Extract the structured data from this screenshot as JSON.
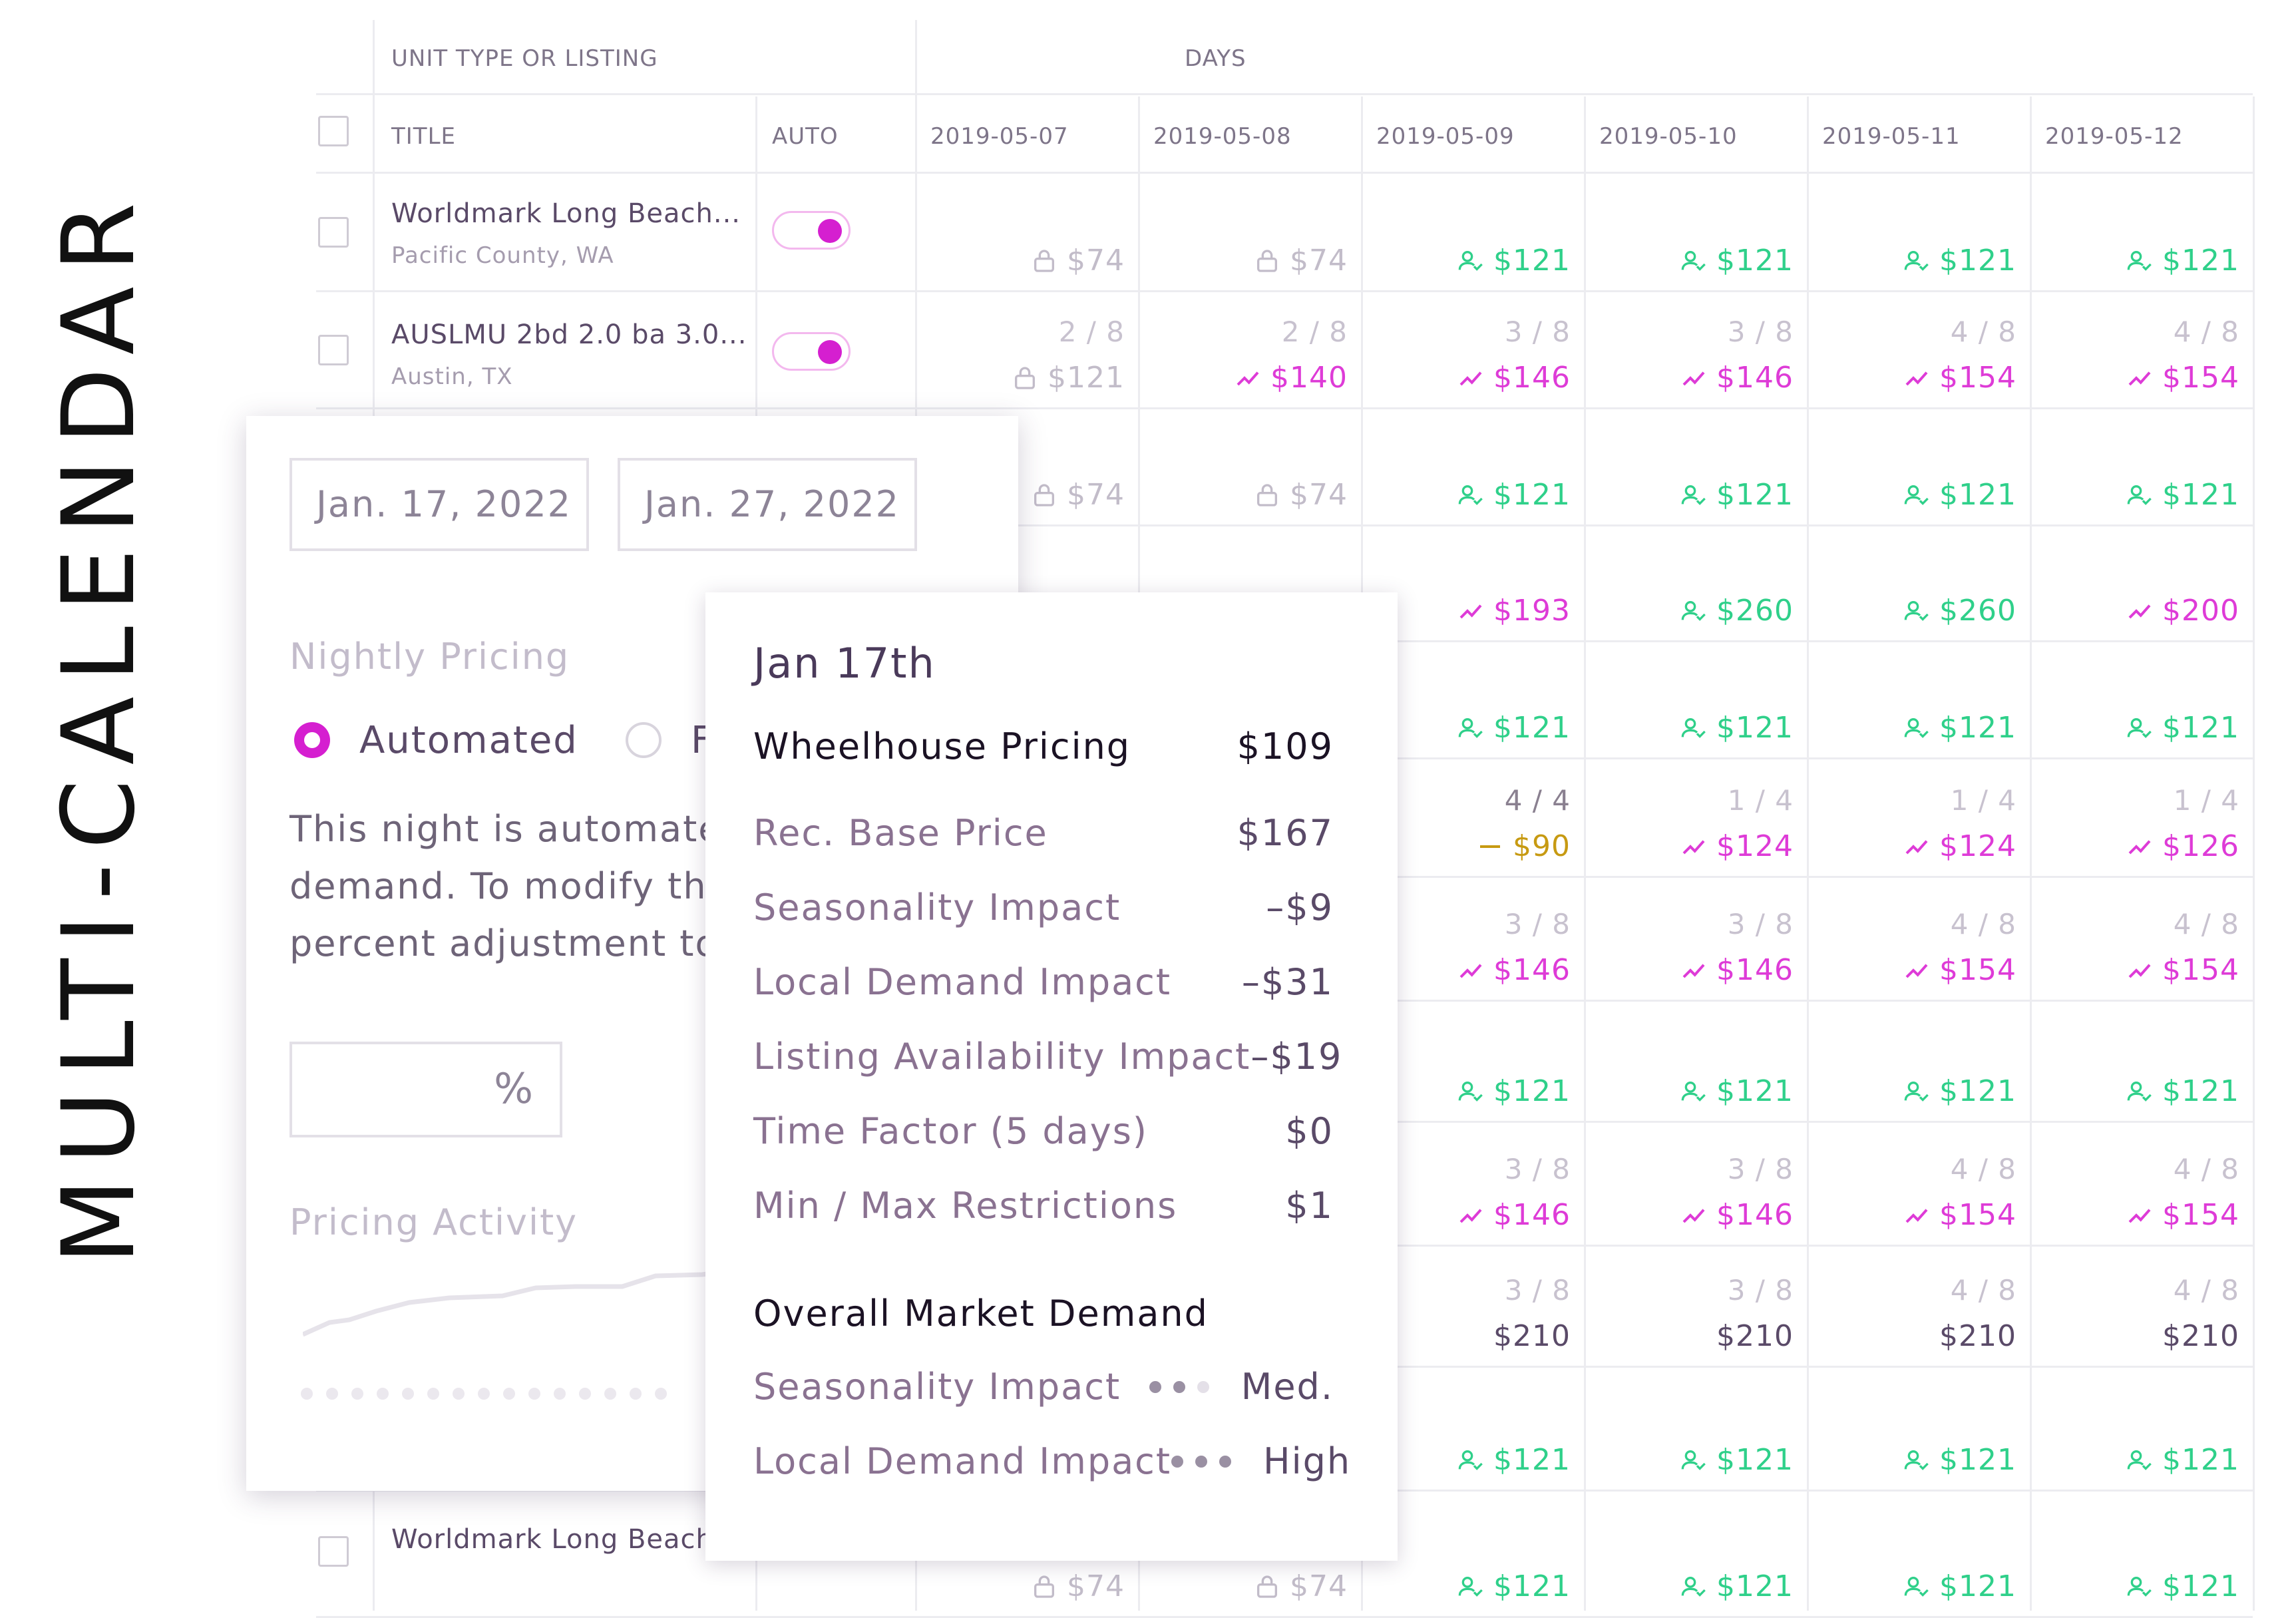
{
  "side_title": "MULTI-CALENDAR",
  "header": {
    "unit_type": "UNIT TYPE OR LISTING",
    "days": "DAYS",
    "title_col": "TITLE",
    "auto_col": "AUTO",
    "dates": [
      "2019-05-07",
      "2019-05-08",
      "2019-05-09",
      "2019-05-10",
      "2019-05-11",
      "2019-05-12"
    ]
  },
  "listings": [
    {
      "title": "Worldmark Long Beach...",
      "location": "Pacific County, WA",
      "auto": true
    },
    {
      "title": "AUSLMU 2bd 2.0 ba 3.0...",
      "location": "Austin, TX",
      "auto": true
    },
    {
      "title": "Worldmark Long Beach",
      "location": "",
      "auto": true
    }
  ],
  "rows": [
    [
      {
        "p": "$74",
        "k": "lock"
      },
      {
        "p": "$74",
        "k": "lock"
      },
      {
        "p": "$121",
        "k": "user"
      },
      {
        "p": "$121",
        "k": "user"
      },
      {
        "p": "$121",
        "k": "user"
      },
      {
        "p": "$121",
        "k": "user"
      }
    ],
    [
      {
        "o": "2 / 8",
        "p": "$121",
        "k": "lock"
      },
      {
        "o": "2 / 8",
        "p": "$140",
        "k": "trend"
      },
      {
        "o": "3 / 8",
        "p": "$146",
        "k": "trend"
      },
      {
        "o": "3 / 8",
        "p": "$146",
        "k": "trend"
      },
      {
        "o": "4 / 8",
        "p": "$154",
        "k": "trend"
      },
      {
        "o": "4 / 8",
        "p": "$154",
        "k": "trend"
      }
    ],
    [
      {
        "p": "$74",
        "k": "lock"
      },
      {
        "p": "$74",
        "k": "lock"
      },
      {
        "p": "$121",
        "k": "user"
      },
      {
        "p": "$121",
        "k": "user"
      },
      {
        "p": "$121",
        "k": "user"
      },
      {
        "p": "$121",
        "k": "user"
      }
    ],
    [
      null,
      null,
      {
        "p": "$193",
        "k": "trend"
      },
      {
        "p": "$260",
        "k": "user"
      },
      {
        "p": "$260",
        "k": "user"
      },
      {
        "p": "$200",
        "k": "trend"
      }
    ],
    [
      null,
      null,
      {
        "p": "$121",
        "k": "user"
      },
      {
        "p": "$121",
        "k": "user"
      },
      {
        "p": "$121",
        "k": "user"
      },
      {
        "p": "$121",
        "k": "user"
      }
    ],
    [
      null,
      null,
      {
        "o": "4 / 4",
        "od": true,
        "p": "$90",
        "k": "dash"
      },
      {
        "o": "1 / 4",
        "p": "$124",
        "k": "trend"
      },
      {
        "o": "1 / 4",
        "p": "$124",
        "k": "trend"
      },
      {
        "o": "1 / 4",
        "p": "$126",
        "k": "trend"
      }
    ],
    [
      null,
      null,
      {
        "o": "3 / 8",
        "p": "$146",
        "k": "trend"
      },
      {
        "o": "3 / 8",
        "p": "$146",
        "k": "trend"
      },
      {
        "o": "4 / 8",
        "p": "$154",
        "k": "trend"
      },
      {
        "o": "4 / 8",
        "p": "$154",
        "k": "trend"
      }
    ],
    [
      null,
      null,
      {
        "p": "$121",
        "k": "user"
      },
      {
        "p": "$121",
        "k": "user"
      },
      {
        "p": "$121",
        "k": "user"
      },
      {
        "p": "$121",
        "k": "user"
      }
    ],
    [
      null,
      null,
      {
        "o": "3 / 8",
        "p": "$146",
        "k": "trend"
      },
      {
        "o": "3 / 8",
        "p": "$146",
        "k": "trend"
      },
      {
        "o": "4 / 8",
        "p": "$154",
        "k": "trend"
      },
      {
        "o": "4 / 8",
        "p": "$154",
        "k": "trend"
      }
    ],
    [
      null,
      null,
      {
        "o": "3 / 8",
        "p": "$210",
        "k": "none"
      },
      {
        "o": "3 / 8",
        "p": "$210",
        "k": "none"
      },
      {
        "o": "4 / 8",
        "p": "$210",
        "k": "none"
      },
      {
        "o": "4 / 8",
        "p": "$210",
        "k": "none"
      }
    ],
    [
      null,
      null,
      {
        "p": "$121",
        "k": "user"
      },
      {
        "p": "$121",
        "k": "user"
      },
      {
        "p": "$121",
        "k": "user"
      },
      {
        "p": "$121",
        "k": "user"
      }
    ],
    [
      {
        "p": "$74",
        "k": "lock"
      },
      {
        "p": "$74",
        "k": "lock"
      },
      {
        "p": "$121",
        "k": "user"
      },
      {
        "p": "$121",
        "k": "user"
      },
      {
        "p": "$121",
        "k": "user"
      },
      {
        "p": "$121",
        "k": "user"
      }
    ]
  ],
  "colors": {
    "green": "#2fd08a",
    "pink": "#de3bd7",
    "gold": "#c79a12",
    "accent": "#d51fd0"
  },
  "panel": {
    "start_date": "Jan. 17, 2022",
    "end_date": "Jan. 27, 2022",
    "nightly_pricing": "Nightly Pricing",
    "radio_automated": "Automated",
    "radio_other": "F",
    "desc_line1": "This night is automated t",
    "desc_line2": "demand. To modify the p",
    "desc_line3": "percent adjustment tool l",
    "percent_symbol": "%",
    "pricing_activity": "Pricing Activity"
  },
  "popup": {
    "date": "Jan 17th",
    "wheelhouse_label": "Wheelhouse Pricing",
    "wheelhouse_value": "$109",
    "breakdown": [
      {
        "label": "Rec. Base Price",
        "value": "$167"
      },
      {
        "label": "Seasonality Impact",
        "value": "–$9"
      },
      {
        "label": "Local Demand Impact",
        "value": "–$31"
      },
      {
        "label": "Listing Availability Impact",
        "value": "–$19"
      },
      {
        "label": "Time Factor (5 days)",
        "value": "$0"
      },
      {
        "label": "Min / Max Restrictions",
        "value": "$1"
      }
    ],
    "market_title": "Overall Market Demand",
    "market": [
      {
        "label": "Seasonality Impact",
        "level": "Med.",
        "dots": 2
      },
      {
        "label": "Local Demand Impact",
        "level": "High",
        "dots": 3
      }
    ]
  }
}
